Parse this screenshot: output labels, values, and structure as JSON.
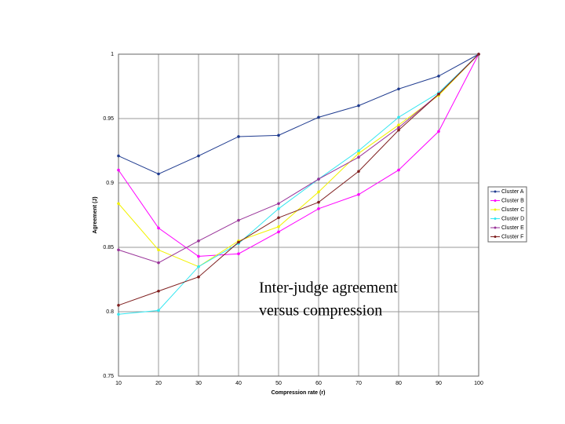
{
  "chart_data": {
    "type": "line",
    "x_label": "Compression rate (r)",
    "y_label": "Agreement (J)",
    "annotation": [
      "Inter-judge agreement",
      "versus compression"
    ],
    "x": [
      10,
      20,
      30,
      40,
      50,
      60,
      70,
      80,
      90,
      100
    ],
    "xlim": [
      10,
      100
    ],
    "xticks": [
      10,
      20,
      30,
      40,
      50,
      60,
      70,
      80,
      90,
      100
    ],
    "ylim": [
      0.75,
      1
    ],
    "yticks": [
      0.75,
      0.8,
      0.85,
      0.9,
      0.95,
      1
    ],
    "grid": true,
    "legend": "right",
    "series": [
      {
        "name": "Cluster A",
        "color": "#1f3b8f",
        "values": [
          0.921,
          0.907,
          0.921,
          0.936,
          0.937,
          0.951,
          0.96,
          0.973,
          0.983,
          1
        ]
      },
      {
        "name": "Cluster B",
        "color": "#ff00ff",
        "values": [
          0.91,
          0.865,
          0.843,
          0.845,
          0.862,
          0.88,
          0.891,
          0.91,
          0.94,
          1
        ]
      },
      {
        "name": "Cluster C",
        "color": "#f2f200",
        "values": [
          0.884,
          0.848,
          0.835,
          0.855,
          0.866,
          0.893,
          0.923,
          0.945,
          0.968,
          1
        ]
      },
      {
        "name": "Cluster D",
        "color": "#33e6f0",
        "values": [
          0.798,
          0.801,
          0.835,
          0.853,
          0.88,
          0.903,
          0.925,
          0.951,
          0.97,
          1
        ]
      },
      {
        "name": "Cluster E",
        "color": "#993399",
        "values": [
          0.848,
          0.838,
          0.855,
          0.871,
          0.884,
          0.903,
          0.92,
          0.943,
          0.969,
          1
        ]
      },
      {
        "name": "Cluster F",
        "color": "#7f1f1f",
        "values": [
          0.805,
          0.816,
          0.827,
          0.854,
          0.873,
          0.885,
          0.909,
          0.941,
          0.969,
          1
        ]
      }
    ]
  }
}
